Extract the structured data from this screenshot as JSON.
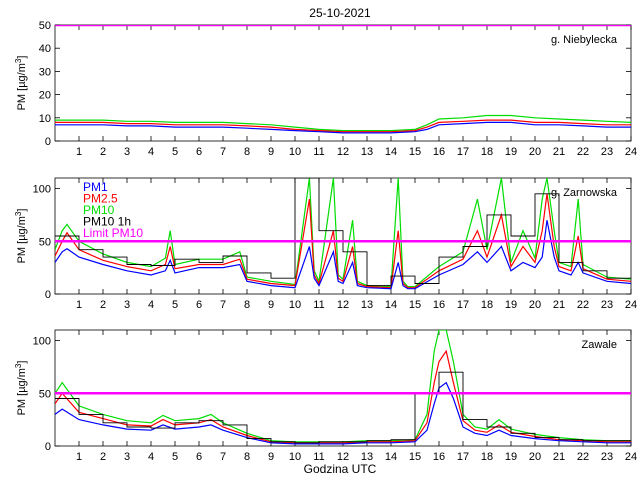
{
  "title": "25-10-2021",
  "xlabel": "Godzina UTC",
  "colors": {
    "PM1": "#0000ff",
    "PM2.5": "#ff0000",
    "PM10": "#00dd00",
    "PM10 1h": "#000000",
    "Limit PM10": "#ff00ff"
  },
  "chart_data": [
    {
      "type": "line",
      "station": "g. Niebylecka",
      "ylabel": "PM [µg/m3]",
      "ylim": [
        0,
        50
      ],
      "yticks": [
        0,
        10,
        20,
        30,
        40,
        50
      ],
      "xlim": [
        0,
        24
      ],
      "xticks": [
        1,
        2,
        3,
        4,
        5,
        6,
        7,
        8,
        9,
        10,
        11,
        12,
        13,
        14,
        15,
        16,
        17,
        18,
        19,
        20,
        21,
        22,
        23,
        24
      ],
      "legend": [],
      "limit": 50,
      "series": [
        {
          "name": "PM1",
          "x": [
            0,
            1,
            2,
            3,
            4,
            5,
            6,
            7,
            8,
            9,
            10,
            11,
            12,
            13,
            14,
            15,
            15.5,
            16,
            17,
            18,
            19,
            20,
            21,
            22,
            23,
            24
          ],
          "values": [
            7,
            7,
            7,
            6.5,
            6.5,
            6,
            6,
            6,
            5.5,
            5,
            4.5,
            4,
            3.5,
            3.5,
            3.5,
            4,
            5,
            7,
            7.5,
            8,
            8,
            7,
            7,
            6.5,
            6,
            6
          ]
        },
        {
          "name": "PM2.5",
          "x": [
            0,
            1,
            2,
            3,
            4,
            5,
            6,
            7,
            8,
            9,
            10,
            11,
            12,
            13,
            14,
            15,
            15.5,
            16,
            17,
            18,
            19,
            20,
            21,
            22,
            23,
            24
          ],
          "values": [
            8,
            8,
            8,
            7.5,
            7.5,
            7,
            7,
            7,
            6.5,
            6,
            5,
            4.5,
            4,
            4,
            4,
            4.5,
            6,
            8,
            8.5,
            9,
            9,
            8,
            8,
            7.5,
            7,
            7
          ]
        },
        {
          "name": "PM10",
          "x": [
            0,
            1,
            2,
            3,
            4,
            5,
            6,
            7,
            8,
            9,
            10,
            11,
            12,
            13,
            14,
            15,
            15.5,
            16,
            17,
            18,
            19,
            20,
            21,
            22,
            23,
            24
          ],
          "values": [
            9,
            9,
            9,
            8.5,
            8.5,
            8,
            8,
            8,
            7.5,
            7,
            6,
            5,
            4.5,
            4.5,
            4.5,
            5,
            7,
            9.5,
            10,
            11,
            11,
            10,
            9.5,
            9,
            8.5,
            8
          ]
        },
        {
          "name": "PM10 1h",
          "x": [],
          "values": []
        }
      ]
    },
    {
      "type": "line",
      "station": "g. Zarnowska",
      "ylabel": "PM [µg/m3]",
      "ylim": [
        0,
        110
      ],
      "yticks": [
        0,
        50,
        100
      ],
      "xlim": [
        0,
        24
      ],
      "xticks": [
        1,
        2,
        3,
        4,
        5,
        6,
        7,
        8,
        9,
        10,
        11,
        12,
        13,
        14,
        15,
        16,
        17,
        18,
        19,
        20,
        21,
        22,
        23,
        24
      ],
      "legend": [
        "PM1",
        "PM2.5",
        "PM10",
        "PM10 1h",
        "Limit PM10"
      ],
      "limit": 50,
      "series": [
        {
          "name": "PM1",
          "x": [
            0,
            0.3,
            0.5,
            1,
            2,
            3,
            4,
            4.6,
            4.8,
            5,
            6,
            7,
            7.7,
            8,
            9,
            10,
            10.6,
            10.8,
            11,
            11.6,
            11.8,
            12,
            12.4,
            12.6,
            13,
            14,
            14.3,
            14.5,
            14.7,
            15,
            16,
            17,
            17.6,
            18,
            18.6,
            19,
            19.5,
            20,
            20.3,
            20.5,
            20.8,
            21,
            21.5,
            21.8,
            22,
            23,
            24
          ],
          "values": [
            30,
            40,
            43,
            35,
            28,
            22,
            18,
            22,
            32,
            20,
            25,
            25,
            28,
            12,
            8,
            6,
            45,
            15,
            8,
            40,
            12,
            10,
            30,
            8,
            6,
            5,
            30,
            8,
            5,
            5,
            18,
            28,
            40,
            30,
            45,
            22,
            30,
            25,
            35,
            70,
            35,
            22,
            18,
            30,
            20,
            12,
            10
          ]
        },
        {
          "name": "PM2.5",
          "x": [
            0,
            0.3,
            0.5,
            1,
            2,
            3,
            4,
            4.6,
            4.8,
            5,
            6,
            7,
            7.7,
            8,
            9,
            10,
            10.6,
            10.8,
            11,
            11.6,
            11.8,
            12,
            12.4,
            12.6,
            13,
            14,
            14.3,
            14.5,
            14.7,
            15,
            16,
            17,
            17.6,
            18,
            18.6,
            19,
            19.5,
            20,
            20.3,
            20.5,
            20.8,
            21,
            21.5,
            21.8,
            22,
            23,
            24
          ],
          "values": [
            36,
            50,
            58,
            42,
            32,
            26,
            22,
            28,
            45,
            24,
            28,
            28,
            33,
            14,
            10,
            8,
            90,
            18,
            10,
            60,
            15,
            12,
            45,
            10,
            7,
            6,
            60,
            10,
            6,
            6,
            22,
            33,
            60,
            35,
            75,
            26,
            45,
            30,
            60,
            95,
            45,
            26,
            22,
            55,
            24,
            14,
            12
          ]
        },
        {
          "name": "PM10",
          "x": [
            0,
            0.3,
            0.5,
            1,
            2,
            3,
            4,
            4.6,
            4.8,
            5,
            6,
            7,
            7.7,
            8,
            9,
            10,
            10.6,
            10.8,
            11,
            11.6,
            11.8,
            12,
            12.4,
            12.6,
            13,
            14,
            14.3,
            14.5,
            14.7,
            15,
            16,
            17,
            17.6,
            18,
            18.6,
            19,
            19.5,
            20,
            20.3,
            20.5,
            20.8,
            21,
            21.5,
            21.8,
            22,
            23,
            24
          ],
          "values": [
            42,
            60,
            66,
            50,
            38,
            30,
            26,
            34,
            60,
            28,
            33,
            33,
            40,
            16,
            12,
            9,
            110,
            22,
            12,
            110,
            18,
            14,
            70,
            12,
            8,
            7,
            110,
            12,
            7,
            7,
            26,
            40,
            90,
            42,
            110,
            30,
            60,
            34,
            90,
            110,
            60,
            30,
            26,
            90,
            28,
            16,
            14
          ]
        },
        {
          "name": "PM10 1h",
          "x": [
            0,
            1,
            2,
            3,
            4,
            5,
            6,
            7,
            8,
            9,
            10,
            11,
            12,
            13,
            14,
            15,
            16,
            17,
            18,
            19,
            20,
            21,
            22,
            23,
            24
          ],
          "values": [
            55,
            42,
            35,
            28,
            27,
            33,
            30,
            36,
            20,
            15,
            110,
            60,
            40,
            8,
            17,
            10,
            35,
            45,
            75,
            55,
            95,
            30,
            22,
            15,
            12
          ]
        }
      ]
    },
    {
      "type": "line",
      "station": "Zawale",
      "ylabel": "PM [µg/m3]",
      "ylim": [
        0,
        110
      ],
      "yticks": [
        0,
        50,
        100
      ],
      "xlim": [
        0,
        24
      ],
      "xticks": [
        1,
        2,
        3,
        4,
        5,
        6,
        7,
        8,
        9,
        10,
        11,
        12,
        13,
        14,
        15,
        16,
        17,
        18,
        19,
        20,
        21,
        22,
        23,
        24
      ],
      "legend": [],
      "limit": 50,
      "series": [
        {
          "name": "PM1",
          "x": [
            0,
            0.3,
            1,
            2,
            3,
            4,
            4.5,
            5,
            6,
            6.5,
            7,
            8,
            9,
            10,
            11,
            12,
            13,
            14,
            15,
            15.5,
            15.8,
            16,
            16.3,
            16.6,
            17,
            17.5,
            18,
            18.5,
            19,
            20,
            21,
            22,
            23,
            24
          ],
          "values": [
            30,
            35,
            25,
            20,
            16,
            15,
            20,
            16,
            18,
            20,
            15,
            8,
            3,
            2,
            2,
            2,
            3,
            3,
            4,
            15,
            40,
            55,
            60,
            45,
            18,
            12,
            10,
            15,
            10,
            7,
            5,
            4,
            3,
            3
          ]
        },
        {
          "name": "PM2.5",
          "x": [
            0,
            0.3,
            1,
            2,
            3,
            4,
            4.5,
            5,
            6,
            6.5,
            7,
            8,
            9,
            10,
            11,
            12,
            13,
            14,
            15,
            15.5,
            15.8,
            16,
            16.3,
            16.6,
            17,
            17.5,
            18,
            18.5,
            19,
            20,
            21,
            22,
            23,
            24
          ],
          "values": [
            40,
            50,
            32,
            26,
            20,
            19,
            25,
            20,
            22,
            25,
            18,
            10,
            4,
            3,
            3,
            3,
            4,
            4,
            5,
            22,
            60,
            80,
            90,
            60,
            24,
            15,
            13,
            20,
            13,
            9,
            6,
            5,
            4,
            4
          ]
        },
        {
          "name": "PM10",
          "x": [
            0,
            0.3,
            1,
            2,
            3,
            4,
            4.5,
            5,
            6,
            6.5,
            7,
            8,
            9,
            10,
            11,
            12,
            13,
            14,
            15,
            15.5,
            15.8,
            16,
            16.3,
            16.6,
            17,
            17.5,
            18,
            18.5,
            19,
            20,
            21,
            22,
            23,
            24
          ],
          "values": [
            50,
            60,
            38,
            30,
            24,
            22,
            29,
            24,
            26,
            30,
            22,
            12,
            5,
            4,
            4,
            4,
            5,
            5,
            6,
            30,
            90,
            110,
            110,
            80,
            30,
            18,
            16,
            25,
            16,
            11,
            8,
            6,
            5,
            5
          ]
        },
        {
          "name": "PM10 1h",
          "x": [
            0,
            1,
            2,
            3,
            4,
            5,
            6,
            7,
            8,
            9,
            10,
            11,
            12,
            13,
            14,
            15,
            16,
            17,
            18,
            19,
            20,
            21,
            22,
            23,
            24
          ],
          "values": [
            45,
            30,
            22,
            18,
            17,
            22,
            24,
            20,
            7,
            4,
            3,
            4,
            4,
            5,
            6,
            50,
            70,
            25,
            18,
            12,
            8,
            6,
            5,
            5,
            5
          ]
        }
      ]
    }
  ]
}
